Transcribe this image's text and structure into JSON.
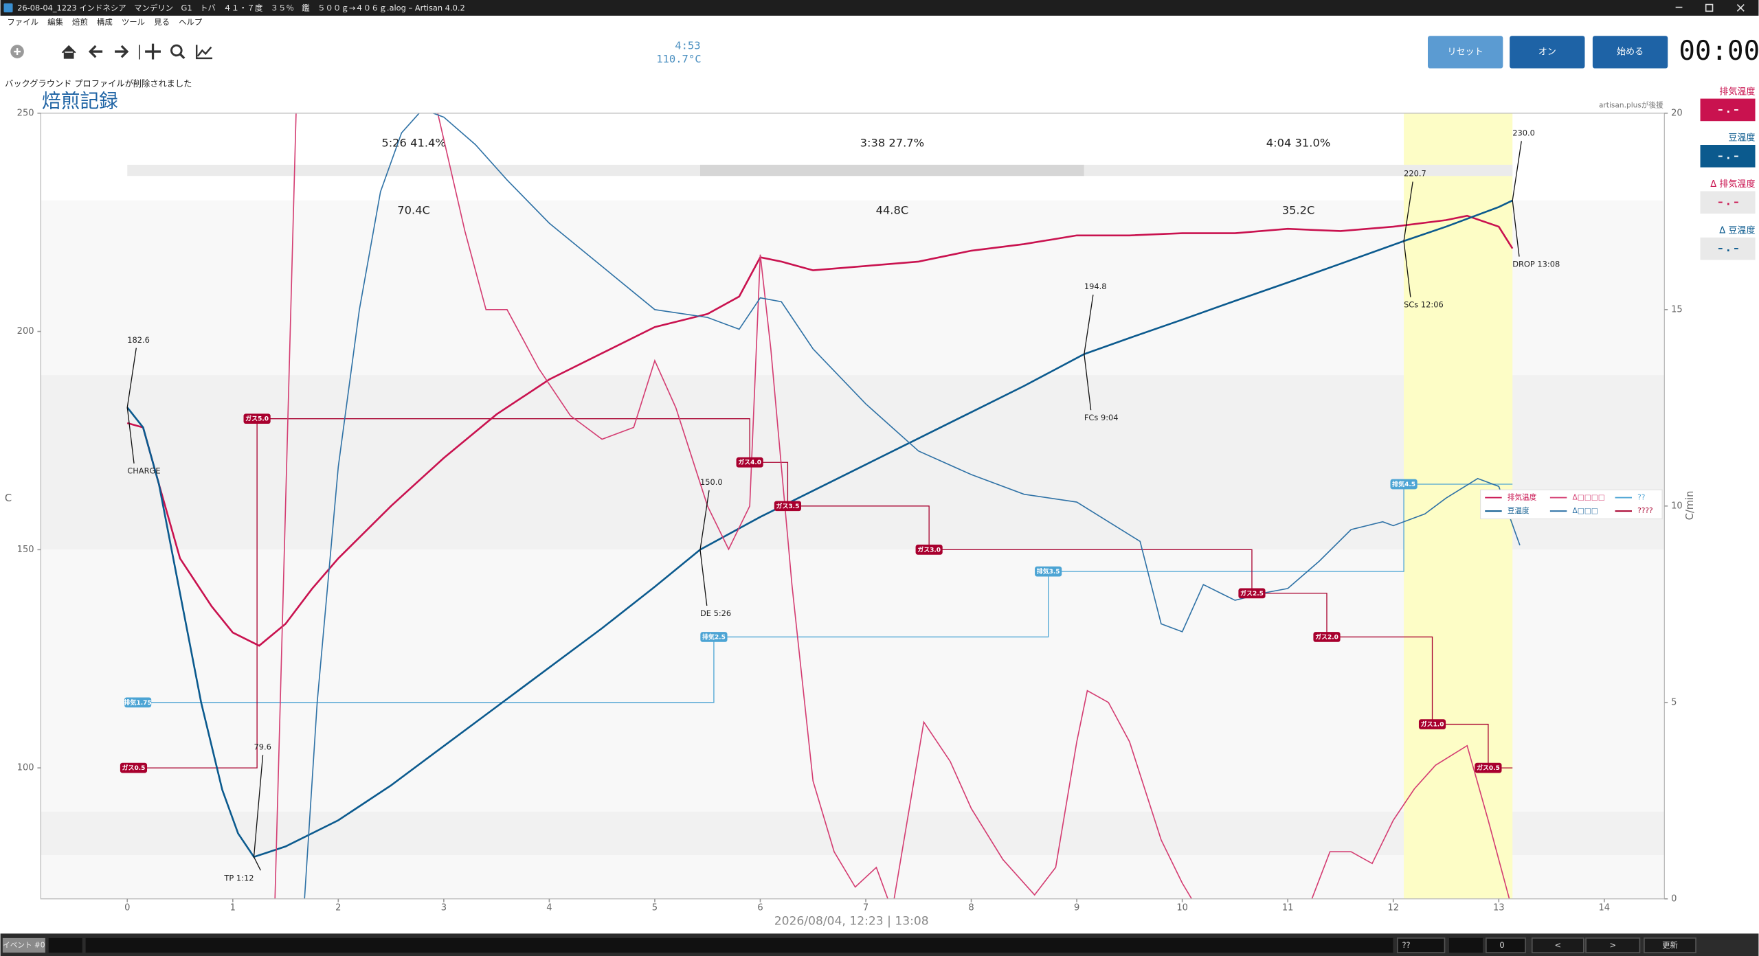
{
  "ui": {
    "window_title": "26-08-04_1223 インドネシア　マンデリン　G1　トバ　４１・７度　３５％　鑑　５００ｇ→４０６ｇ.alog – Artisan 4.0.2",
    "menu": [
      "ファイル",
      "編集",
      "焙煎",
      "構成",
      "ツール",
      "見る",
      "ヘルプ"
    ],
    "elapsed": "4:53",
    "reading": "110.7°C",
    "buttons": [
      "リセット",
      "オン",
      "始める"
    ],
    "timer": "00:00",
    "status": "バックグラウンド プロファイルが削除されました",
    "sponsor": "artisan.plusが後援",
    "lcds": [
      {
        "label": "排気温度",
        "value": "– . –"
      },
      {
        "label": "豆温度",
        "value": "– . –"
      },
      {
        "label": "Δ 排気温度",
        "value": "– . –"
      },
      {
        "label": "Δ 豆温度",
        "value": "– . –"
      }
    ],
    "footer": {
      "event": "イベント #0",
      "combo": "??",
      "spin": "0",
      "prev": "<",
      "next": ">",
      "update": "更新"
    }
  },
  "chart_data": {
    "type": "line",
    "title": "焙煎記録",
    "xlabel": "2026/08/04, 12:23   |   13:08",
    "ylabel": "C",
    "y2label": "C/min",
    "xlim": [
      -0.82,
      14.57
    ],
    "ylim": [
      70,
      250
    ],
    "y2lim": [
      0,
      20
    ],
    "xticks": [
      0,
      1,
      2,
      3,
      4,
      5,
      6,
      7,
      8,
      9,
      10,
      11,
      12,
      13,
      14
    ],
    "yticks": [
      100,
      150,
      200,
      250
    ],
    "y2ticks": [
      0,
      5,
      10,
      15,
      20
    ],
    "bands": [
      {
        "from": 190,
        "to": 230,
        "color": "#f8f8f8"
      },
      {
        "from": 150,
        "to": 190,
        "color": "#f1f1f1"
      },
      {
        "from": 90,
        "to": 150,
        "color": "#f8f8f8"
      },
      {
        "from": 80,
        "to": 90,
        "color": "#f1f1f1"
      },
      {
        "from": 70,
        "to": 80,
        "color": "#f8f8f8"
      }
    ],
    "highlight": {
      "from": 12.1,
      "to": 13.13,
      "color": "#fdfdc6"
    },
    "phases": [
      {
        "label": "5:26  41.4%",
        "delta": "70.4C",
        "from": 0,
        "to": 5.43,
        "color": "#ebebeb"
      },
      {
        "label": "3:38  27.7%",
        "delta": "44.8C",
        "from": 5.43,
        "to": 9.07,
        "color": "#d6d6d6"
      },
      {
        "label": "4:04  31.0%",
        "delta": "35.2C",
        "from": 9.07,
        "to": 13.13,
        "color": "#ebebeb"
      }
    ],
    "series": [
      {
        "name": "排気温度",
        "color": "#c9124f",
        "width": 1.6,
        "x": [
          0,
          0.15,
          0.3,
          0.5,
          0.8,
          1.0,
          1.25,
          1.5,
          1.75,
          2,
          2.5,
          3,
          3.5,
          4,
          4.5,
          5,
          5.5,
          5.8,
          6,
          6.2,
          6.5,
          7,
          7.5,
          8,
          8.5,
          9,
          9.5,
          10,
          10.5,
          11,
          11.5,
          12,
          12.5,
          12.7,
          13,
          13.13
        ],
        "values": [
          179,
          178,
          165,
          148,
          137,
          131,
          128,
          133,
          141,
          148,
          160,
          171,
          181,
          189,
          195,
          201,
          204,
          208,
          217,
          216,
          214,
          215,
          216,
          218.5,
          220,
          222,
          222,
          222.5,
          222.5,
          223.5,
          223,
          224,
          225.5,
          226.5,
          224,
          219
        ]
      },
      {
        "name": "豆温度",
        "color": "#0b5a8e",
        "width": 1.6,
        "x": [
          0,
          0.15,
          0.3,
          0.5,
          0.7,
          0.9,
          1.05,
          1.2,
          1.5,
          2,
          2.5,
          3,
          3.5,
          4,
          4.5,
          5,
          5.43,
          6,
          6.5,
          7,
          7.5,
          8,
          8.5,
          9.07,
          9.5,
          10,
          10.5,
          11,
          11.5,
          12.1,
          12.5,
          13,
          13.13
        ],
        "values": [
          182.6,
          178,
          165,
          140,
          115,
          95,
          85,
          79.6,
          82,
          88,
          96,
          105,
          114,
          123,
          132,
          141.5,
          150,
          157.5,
          163.5,
          169.5,
          175.5,
          181.5,
          187.5,
          194.8,
          198.5,
          202.7,
          207,
          211.2,
          215.5,
          220.7,
          224,
          228.5,
          230
        ]
      },
      {
        "name": "Δ□□□□",
        "color": "#d43d72",
        "width": 1,
        "axis": "y2",
        "x": [
          1.4,
          1.6,
          1.72,
          2.9,
          3.2,
          3.4,
          3.6,
          3.9,
          4.2,
          4.5,
          4.8,
          5,
          5.2,
          5.5,
          5.7,
          5.9,
          6,
          6.1,
          6.3,
          6.5,
          6.7,
          6.9,
          7.1,
          7.25,
          7.55,
          7.8,
          8,
          8.3,
          8.6,
          8.8,
          9,
          9.1,
          9.3,
          9.5,
          9.8,
          10,
          10.2,
          10.4,
          10.6,
          10.8,
          11,
          11.2,
          11.4,
          11.6,
          11.8,
          12,
          12.2,
          12.4,
          12.7,
          12.9,
          13.1
        ],
        "values": [
          0,
          20,
          30,
          20.5,
          17,
          15,
          15,
          13.5,
          12.3,
          11.7,
          12,
          13.7,
          12.5,
          10,
          8.9,
          10,
          16.4,
          14,
          8,
          3,
          1.2,
          0.3,
          0.8,
          -0.3,
          4.5,
          3.5,
          2.3,
          1,
          0.1,
          0.8,
          4,
          5.3,
          5.0,
          4.0,
          1.5,
          0.4,
          -0.5,
          -1,
          -1,
          -0.5,
          -0.3,
          -0.2,
          1.2,
          1.2,
          0.9,
          2,
          2.8,
          3.4,
          3.9,
          2,
          0
        ]
      },
      {
        "name": "Δ□□□",
        "color": "#2f72a6",
        "width": 1,
        "axis": "y2",
        "x": [
          1.68,
          1.8,
          2,
          2.2,
          2.4,
          2.6,
          2.8,
          3,
          3.3,
          3.6,
          4,
          4.5,
          5,
          5.5,
          5.8,
          6,
          6.2,
          6.5,
          7,
          7.5,
          8,
          8.5,
          9,
          9.3,
          9.6,
          9.8,
          10,
          10.2,
          10.5,
          10.8,
          11,
          11.3,
          11.6,
          11.9,
          12,
          12.3,
          12.5,
          12.8,
          13,
          13.2
        ],
        "values": [
          0,
          5,
          11,
          15,
          18,
          19.5,
          20.1,
          19.9,
          19.2,
          18.3,
          17.2,
          16.1,
          15,
          14.8,
          14.5,
          15.3,
          15.2,
          14,
          12.6,
          11.4,
          10.8,
          10.3,
          10.1,
          9.6,
          9.1,
          7,
          6.8,
          8,
          7.6,
          7.8,
          7.9,
          8.6,
          9.4,
          9.6,
          9.5,
          9.8,
          10.2,
          10.7,
          10.5,
          9.0
        ]
      }
    ],
    "events": [
      {
        "name": "??",
        "color": "#4ca4d4",
        "items": [
          {
            "label": "排気1.75",
            "time": 0.1,
            "level": 115
          },
          {
            "label": "排気2.5",
            "time": 5.56,
            "level": 130
          },
          {
            "label": "排気3.5",
            "time": 8.73,
            "level": 145
          },
          {
            "label": "排気4.5",
            "time": 12.1,
            "level": 165
          }
        ]
      },
      {
        "name": "????",
        "color": "#a8002e",
        "items": [
          {
            "label": "ガス0.5",
            "time": 0.06,
            "level": 100
          },
          {
            "label": "ガス5.0",
            "time": 1.23,
            "level": 180
          },
          {
            "label": "ガス4.0",
            "time": 5.9,
            "level": 170
          },
          {
            "label": "ガス3.5",
            "time": 6.26,
            "level": 160
          },
          {
            "label": "ガス3.0",
            "time": 7.6,
            "level": 150
          },
          {
            "label": "ガス2.5",
            "time": 10.66,
            "level": 140
          },
          {
            "label": "ガス2.0",
            "time": 11.37,
            "level": 130
          },
          {
            "label": "ガス1.0",
            "time": 12.37,
            "level": 110
          },
          {
            "label": "ガス0.5",
            "time": 12.9,
            "level": 100
          }
        ]
      }
    ],
    "annotations": [
      {
        "name": "CHARGE",
        "value_label": "182.6",
        "time": 0,
        "temp": 182.6
      },
      {
        "name": "TP 1:12",
        "value_label": "79.6",
        "time": 1.2,
        "temp": 79.6
      },
      {
        "name": "DE 5:26",
        "value_label": "150.0",
        "time": 5.43,
        "temp": 150
      },
      {
        "name": "FCs 9:04",
        "value_label": "194.8",
        "time": 9.07,
        "temp": 194.8
      },
      {
        "name": "SCs 12:06",
        "value_label": "220.7",
        "time": 12.1,
        "temp": 220.7
      },
      {
        "name": "DROP 13:08",
        "value_label": "230.0",
        "time": 13.13,
        "temp": 230
      }
    ]
  }
}
